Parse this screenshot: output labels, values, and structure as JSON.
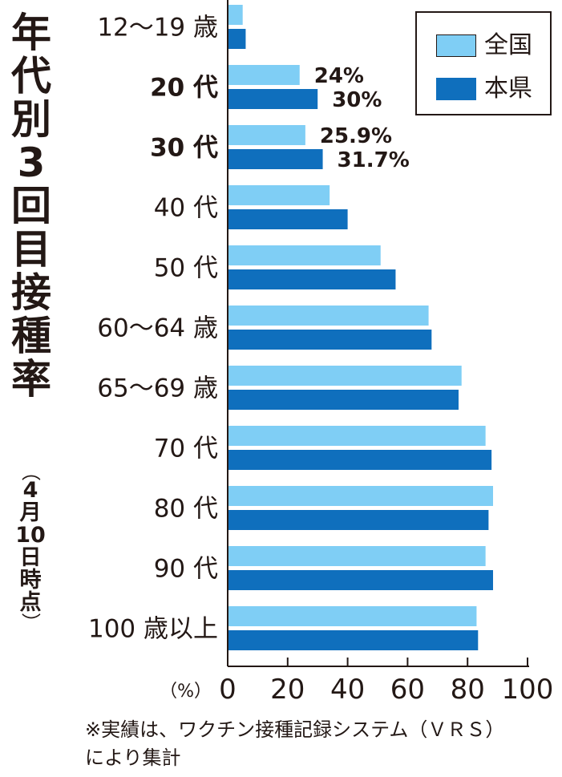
{
  "title": "年代別3回目接種率",
  "subtitle": "（4月10日時点）",
  "legend": [
    {
      "label": "全国",
      "color": "#7fcef5"
    },
    {
      "label": "本県",
      "color": "#0f6fbd"
    }
  ],
  "footnote_line1": "※実績は、ワクチン接種記録システム（ＶＲＳ）",
  "footnote_line2": "により集計",
  "chart_data": {
    "type": "bar",
    "orientation": "horizontal",
    "categories": [
      "12～19 歳",
      "20 代",
      "30 代",
      "40 代",
      "50 代",
      "60～64 歳",
      "65～69 歳",
      "70 代",
      "80 代",
      "90 代",
      "100 歳以上"
    ],
    "series": [
      {
        "name": "全国",
        "color": "#7fcef5",
        "values": [
          5,
          24,
          25.9,
          34,
          51,
          67,
          78,
          86,
          88.5,
          86,
          83
        ]
      },
      {
        "name": "本県",
        "color": "#0f6fbd",
        "values": [
          6,
          30,
          31.7,
          40,
          56,
          68,
          77,
          88,
          87,
          88.5,
          83.5
        ]
      }
    ],
    "data_labels": [
      {
        "category": "20 代",
        "series": "全国",
        "text": "24%"
      },
      {
        "category": "20 代",
        "series": "本県",
        "text": "30%"
      },
      {
        "category": "30 代",
        "series": "全国",
        "text": "25.9%"
      },
      {
        "category": "30 代",
        "series": "本県",
        "text": "31.7%"
      }
    ],
    "xlabel": "（%）",
    "xlim": [
      0,
      100
    ],
    "xticks": [
      0,
      20,
      40,
      60,
      80,
      100
    ],
    "bold_categories": [
      "20 代",
      "30 代"
    ],
    "grid": false,
    "legend_position": "top-right"
  }
}
